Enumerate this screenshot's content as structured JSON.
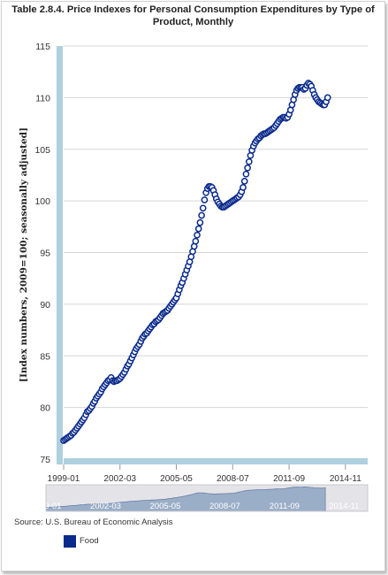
{
  "chart_data": {
    "type": "scatter",
    "title": "Table 2.8.4. Price Indexes for Personal Consumption Expenditures by Type of Product, Monthly",
    "ylabel": "[Index numbers, 2009=100; seasonally adjusted]",
    "xlabel": "",
    "ylim": [
      75,
      115
    ],
    "yticks": [
      75,
      80,
      85,
      90,
      95,
      100,
      105,
      110,
      115
    ],
    "xlim": [
      "1999-01",
      "2016-02"
    ],
    "xticks": [
      "1999-01",
      "2002-03",
      "2005-05",
      "2008-07",
      "2011-09",
      "2014-11"
    ],
    "grid": "horizontal",
    "legend": "bottom-left",
    "source": "Source: U.S. Bureau of Economic Analysis",
    "series_color": "#0a2a8c",
    "marker_fill": "#ffffff",
    "navigator_color": "#9aaec8",
    "series": [
      {
        "name": "Food",
        "start": "1999-01",
        "frequency": "monthly",
        "values": [
          76.8,
          76.9,
          77.0,
          77.1,
          77.2,
          77.3,
          77.5,
          77.6,
          77.8,
          78.0,
          78.2,
          78.4,
          78.6,
          78.8,
          79.0,
          79.3,
          79.6,
          79.7,
          79.9,
          80.1,
          80.4,
          80.6,
          80.9,
          81.1,
          81.3,
          81.5,
          81.8,
          82.0,
          82.2,
          82.4,
          82.6,
          82.7,
          82.9,
          82.6,
          82.5,
          82.6,
          82.6,
          82.7,
          82.8,
          83.0,
          83.2,
          83.4,
          83.7,
          84.0,
          84.2,
          84.5,
          84.8,
          85.1,
          85.4,
          85.7,
          85.9,
          86.1,
          86.4,
          86.7,
          86.9,
          87.1,
          87.2,
          87.4,
          87.6,
          87.8,
          88.0,
          88.1,
          88.3,
          88.4,
          88.5,
          88.7,
          88.9,
          89.1,
          89.2,
          89.3,
          89.4,
          89.6,
          89.8,
          90.0,
          90.2,
          90.4,
          90.6,
          91.0,
          91.4,
          91.8,
          92.1,
          92.5,
          92.9,
          93.3,
          93.7,
          94.1,
          94.6,
          95.1,
          95.6,
          96.1,
          96.7,
          97.3,
          97.9,
          98.6,
          99.3,
          100.1,
          100.8,
          101.2,
          101.4,
          101.4,
          101.3,
          101.0,
          100.6,
          100.2,
          99.9,
          99.7,
          99.5,
          99.4,
          99.4,
          99.5,
          99.6,
          99.7,
          99.8,
          99.9,
          100.0,
          100.1,
          100.2,
          100.3,
          100.4,
          100.6,
          100.9,
          101.3,
          101.9,
          102.6,
          103.2,
          103.8,
          104.4,
          104.9,
          105.3,
          105.6,
          105.8,
          106.0,
          106.1,
          106.3,
          106.4,
          106.5,
          106.5,
          106.6,
          106.7,
          106.8,
          106.9,
          107.0,
          107.1,
          107.3,
          107.5,
          107.7,
          107.9,
          108.0,
          108.1,
          108.1,
          108.0,
          108.1,
          108.4,
          108.8,
          109.3,
          109.8,
          110.3,
          110.7,
          110.9,
          111.0,
          111.0,
          111.0,
          110.8,
          110.9,
          111.2,
          111.4,
          111.3,
          111.1,
          110.7,
          110.3,
          110.0,
          109.8,
          109.6,
          109.5,
          109.4,
          109.3,
          109.3,
          109.6,
          110.0
        ]
      }
    ]
  }
}
